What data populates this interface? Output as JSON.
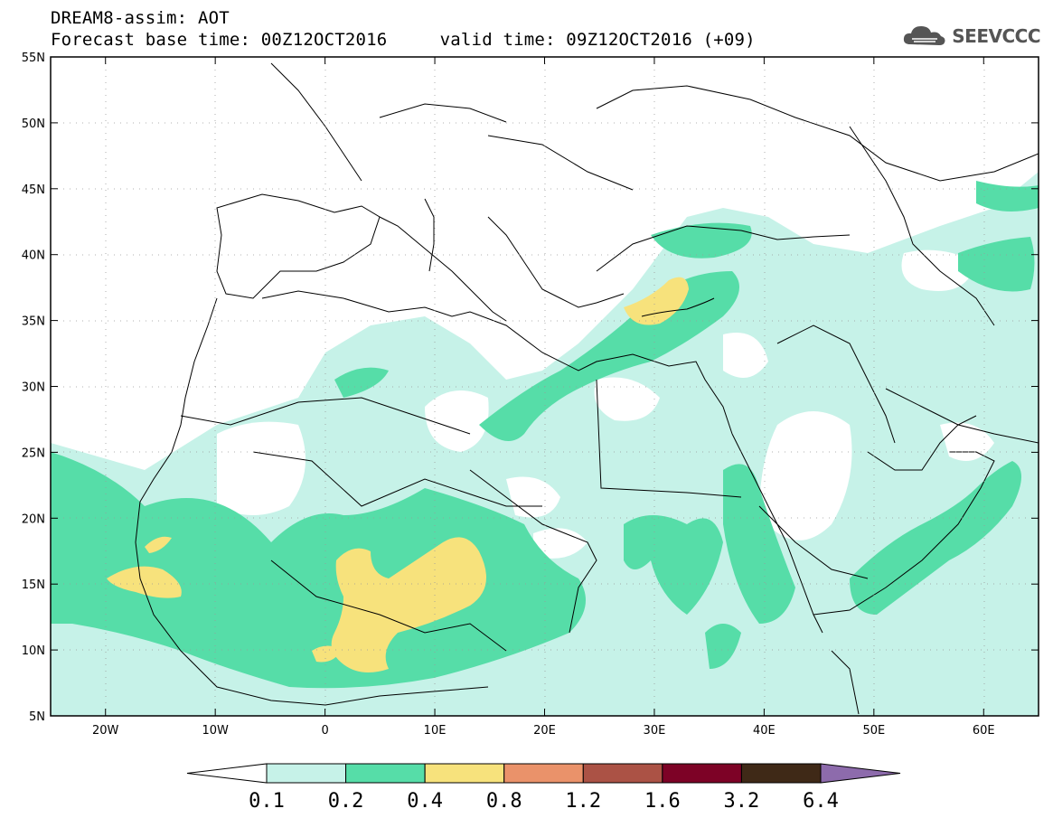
{
  "title_line1": "DREAM8-assim: AOT",
  "title_line2": "Forecast base time: 00Z12OCT2016     valid time: 09Z12OCT2016 (+09)",
  "logo_text": "SEEVCCC",
  "map": {
    "lon_range": [
      -25,
      65
    ],
    "lat_range": [
      5,
      55
    ],
    "lat_ticks": [
      {
        "value": 55,
        "label": "55N"
      },
      {
        "value": 50,
        "label": "50N"
      },
      {
        "value": 45,
        "label": "45N"
      },
      {
        "value": 40,
        "label": "40N"
      },
      {
        "value": 35,
        "label": "35N"
      },
      {
        "value": 30,
        "label": "30N"
      },
      {
        "value": 25,
        "label": "25N"
      },
      {
        "value": 20,
        "label": "20N"
      },
      {
        "value": 15,
        "label": "15N"
      },
      {
        "value": 10,
        "label": "10N"
      },
      {
        "value": 5,
        "label": "5N"
      }
    ],
    "lon_ticks": [
      {
        "value": -20,
        "label": "20W"
      },
      {
        "value": -10,
        "label": "10W"
      },
      {
        "value": 0,
        "label": "0"
      },
      {
        "value": 10,
        "label": "10E"
      },
      {
        "value": 20,
        "label": "20E"
      },
      {
        "value": 30,
        "label": "30E"
      },
      {
        "value": 40,
        "label": "40E"
      },
      {
        "value": 50,
        "label": "50E"
      },
      {
        "value": 60,
        "label": "60E"
      }
    ],
    "grid": "dotted"
  },
  "colorbar": {
    "levels": [
      "0.1",
      "0.2",
      "0.4",
      "0.8",
      "1.2",
      "1.6",
      "3.2",
      "6.4"
    ],
    "colors": [
      "#ffffff",
      "#c6f2e8",
      "#56dda8",
      "#f7e27c",
      "#ea926a",
      "#ab5245",
      "#7d0226",
      "#3f2917",
      "#8d6bac"
    ]
  },
  "fields": {
    "aot_0_1": "#c6f2e8",
    "aot_0_2": "#56dda8",
    "aot_0_4": "#f7e27c"
  }
}
